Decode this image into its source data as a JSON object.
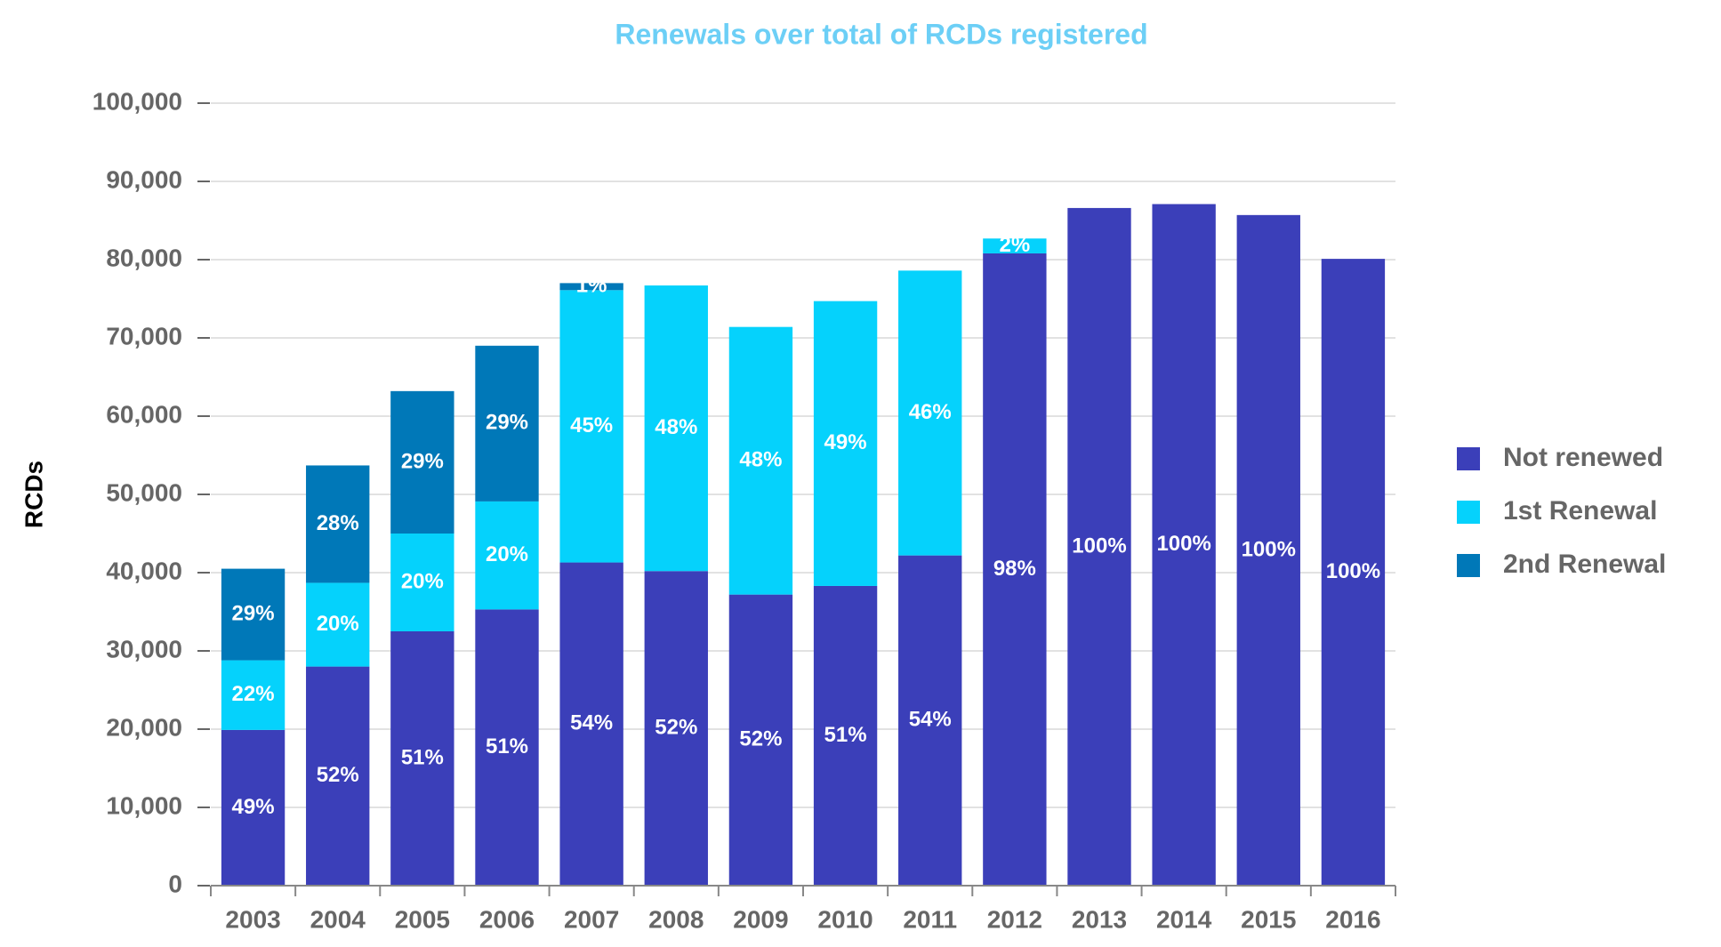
{
  "chart_data": {
    "type": "stacked_bar",
    "title": "Renewals over total of RCDs registered",
    "y_label": "RCDs",
    "categories": [
      "2003",
      "2004",
      "2005",
      "2006",
      "2007",
      "2008",
      "2009",
      "2010",
      "2011",
      "2012",
      "2013",
      "2014",
      "2015",
      "2016"
    ],
    "series": [
      {
        "name": "Not renewed",
        "color": "#3b3fb9",
        "values": [
          19900,
          28000,
          32500,
          35300,
          41300,
          40200,
          37200,
          38300,
          42200,
          80800,
          86600,
          87100,
          85700,
          80100
        ],
        "value_labels": [
          "49%",
          "52%",
          "51%",
          "51%",
          "54%",
          "52%",
          "52%",
          "51%",
          "54%",
          "98%",
          "100%",
          "100%",
          "100%",
          "100%"
        ]
      },
      {
        "name": "1st Renewal",
        "color": "#05d2fc",
        "values": [
          8900,
          10700,
          12500,
          13800,
          34800,
          36500,
          34200,
          36400,
          36400,
          1900,
          null,
          null,
          null,
          null
        ],
        "value_labels": [
          "22%",
          "20%",
          "20%",
          "20%",
          "45%",
          "48%",
          "48%",
          "49%",
          "46%",
          "2%",
          null,
          null,
          null,
          null
        ]
      },
      {
        "name": "2nd Renewal",
        "color": "#0078b8",
        "values": [
          11700,
          15000,
          18200,
          19900,
          900,
          null,
          null,
          null,
          null,
          null,
          null,
          null,
          null,
          null
        ],
        "value_labels": [
          "29%",
          "28%",
          "29%",
          "29%",
          "1%",
          null,
          null,
          null,
          null,
          null,
          null,
          null,
          null,
          null
        ]
      }
    ],
    "ylim": [
      0,
      100000
    ],
    "yticks": [
      0,
      {
        "value": 10000,
        "label": "10,000"
      },
      {
        "value": 20000,
        "label": "20,000"
      },
      {
        "value": 30000,
        "label": "30,000"
      },
      {
        "value": 40000,
        "label": "40,000"
      },
      {
        "value": 50000,
        "label": "50,000"
      },
      {
        "value": 60000,
        "label": "60,000"
      },
      {
        "value": 70000,
        "label": "70,000"
      },
      {
        "value": 80000,
        "label": "80,000"
      },
      {
        "value": 90000,
        "label": "90,000"
      },
      {
        "value": 100000,
        "label": "100,000"
      }
    ],
    "grid": true,
    "legend": "right"
  }
}
